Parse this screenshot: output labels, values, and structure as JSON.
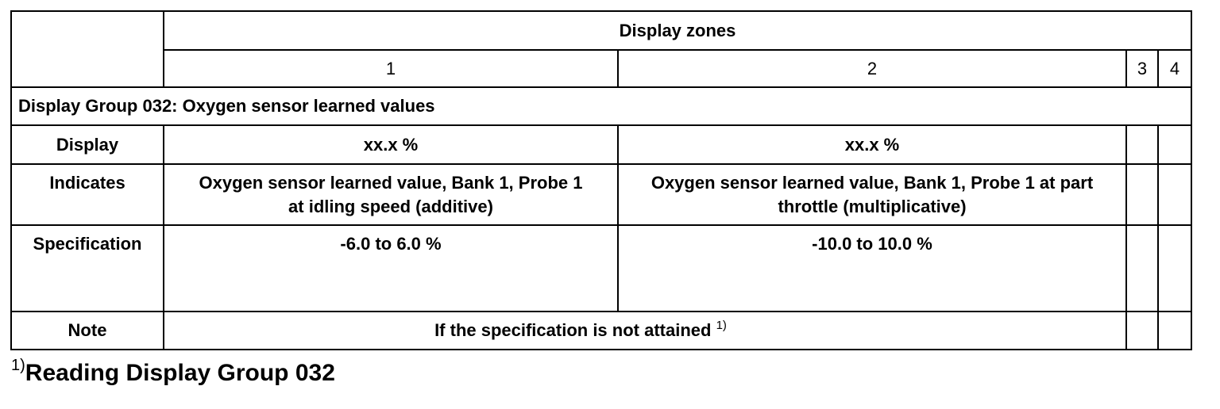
{
  "table": {
    "header": "Display zones",
    "zones": [
      "1",
      "2",
      "3",
      "4"
    ],
    "group_title": "Display Group 032: Oxygen sensor learned values",
    "rows": [
      {
        "label": "Display",
        "zone1": "xx.x %",
        "zone2": "xx.x %"
      },
      {
        "label": "Indicates",
        "zone1": "Oxygen sensor learned value, Bank 1, Probe 1 at idling speed (additive)",
        "zone2": "Oxygen sensor learned value, Bank 1, Probe 1 at part throttle (multiplicative)"
      },
      {
        "label": "Specification",
        "zone1": "-6.0 to 6.0 %",
        "zone2": "-10.0 to 10.0 %"
      }
    ],
    "note": {
      "label": "Note",
      "text": "If the specification is not attained",
      "ref": "1)"
    }
  },
  "footnote": {
    "ref": "1)",
    "text": "Reading Display Group 032"
  }
}
